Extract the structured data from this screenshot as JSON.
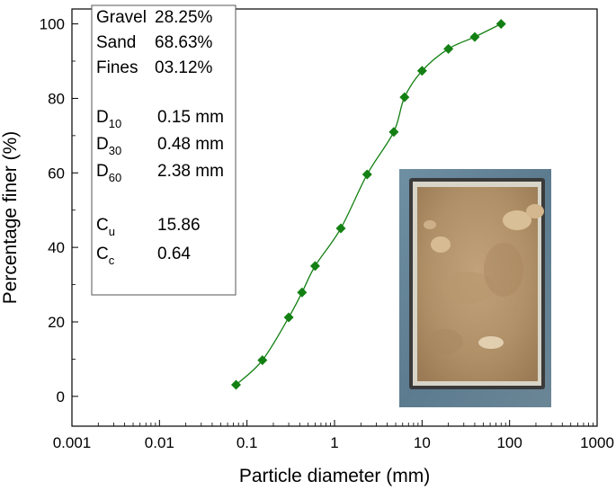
{
  "chart_data": {
    "type": "line",
    "xlabel": "Particle diameter (mm)",
    "ylabel": "Percentage finer (%)",
    "x_scale": "log",
    "xlim": [
      0.001,
      1000
    ],
    "ylim": [
      -8,
      104
    ],
    "x_ticks": [
      0.001,
      0.01,
      0.1,
      1,
      10,
      100,
      1000
    ],
    "x_tick_labels": [
      "0.001",
      "0.01",
      "0.1",
      "1",
      "10",
      "100",
      "1000"
    ],
    "y_ticks": [
      0,
      20,
      40,
      60,
      80,
      100
    ],
    "y_tick_labels": [
      "0",
      "20",
      "40",
      "60",
      "80",
      "100"
    ],
    "grid": false,
    "series": [
      {
        "marker": "diamond",
        "color": "#138013",
        "x": [
          0.075,
          0.15,
          0.3,
          0.425,
          0.6,
          1.18,
          2.36,
          4.75,
          6.3,
          10,
          20,
          40,
          80
        ],
        "y": [
          3.1,
          9.7,
          21.2,
          27.9,
          35.0,
          45.1,
          59.6,
          71.0,
          80.3,
          87.4,
          93.3,
          96.5,
          100
        ]
      }
    ],
    "annotation_box": {
      "lines": [
        {
          "label": "Gravel",
          "sub": "",
          "value": "28.25%"
        },
        {
          "label": "Sand",
          "sub": "",
          "value": "68.63%"
        },
        {
          "label": "Fines",
          "sub": "",
          "value": "03.12%"
        },
        {
          "label": "D",
          "sub": "10",
          "value": "0.15 mm"
        },
        {
          "label": "D",
          "sub": "30",
          "value": "0.48 mm"
        },
        {
          "label": "D",
          "sub": "60",
          "value": "2.38 mm"
        },
        {
          "label": "C",
          "sub": "u",
          "value": "15.86"
        },
        {
          "label": "C",
          "sub": "c",
          "value": "0.64"
        }
      ]
    },
    "inset_image": "photo-of-sand-sample-in-tray"
  }
}
